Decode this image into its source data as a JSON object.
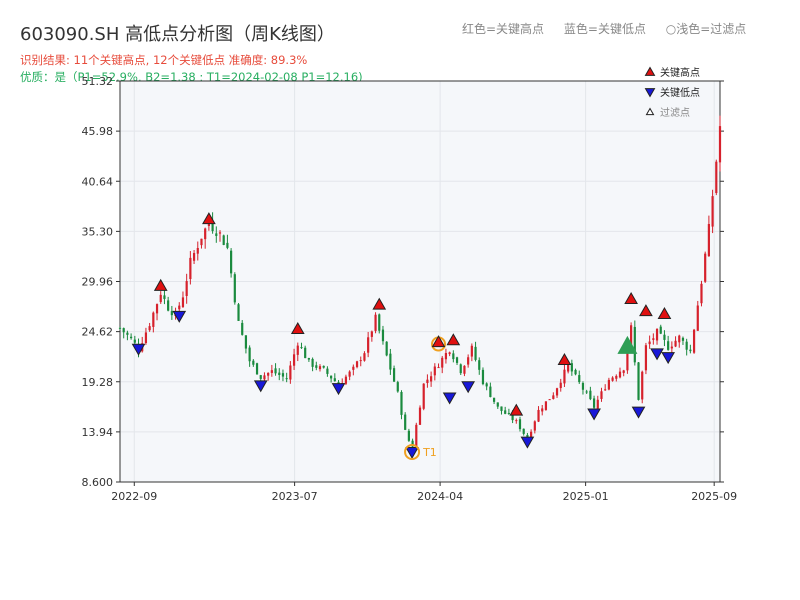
{
  "header": {
    "title": "603090.SH 高低点分析图（周K线图）",
    "legend_items": [
      "红色=关键高点",
      "蓝色=关键低点",
      "○浅色=过滤点"
    ],
    "stats_line": "识别结果: 11个关键高点, 12个关键低点  准确度: 89.3%",
    "quality_line": "优质：是（P1=52.9%, B2=1.38 ; T1=2024-02-08 P1=12.16)"
  },
  "colors": {
    "up": "#d6212c",
    "down": "#1a8a3e",
    "high_marker": "#e01010",
    "low_marker": "#1818d8",
    "filtered_marker": "#f0a020",
    "triangle_green": "#2e9e55",
    "plot_bg": "#f5f7fa"
  },
  "chart_data": {
    "type": "candlestick",
    "yticks": [
      "8.600",
      "13.94",
      "19.28",
      "24.62",
      "29.96",
      "35.30",
      "40.64",
      "45.98",
      "51.32"
    ],
    "ylim": [
      8.6,
      51.32
    ],
    "xticks": [
      "2022-09",
      "2023-07",
      "2024-04",
      "2025-01",
      "2025-09"
    ],
    "date_start": "2022-08-05",
    "date_end": "2025-09-12",
    "legend": [
      {
        "label": "关键高点",
        "marker": "triangle-up",
        "color": "#e01010"
      },
      {
        "label": "关键低点",
        "marker": "triangle-down",
        "color": "#1818d8"
      },
      {
        "label": "过滤点",
        "marker": "triangle-up-outline",
        "color": "#ffffff"
      }
    ],
    "close_path": [
      [
        "2022-08-05",
        25.0
      ],
      [
        "2022-08-26",
        23.8
      ],
      [
        "2022-09-09",
        22.8
      ],
      [
        "2022-09-30",
        25.5
      ],
      [
        "2022-10-21",
        28.8
      ],
      [
        "2022-11-04",
        27.2
      ],
      [
        "2022-11-18",
        26.4
      ],
      [
        "2022-12-02",
        28.5
      ],
      [
        "2022-12-16",
        32.0
      ],
      [
        "2023-01-06",
        34.8
      ],
      [
        "2023-01-20",
        36.2
      ],
      [
        "2023-02-10",
        35.0
      ],
      [
        "2023-02-24",
        33.5
      ],
      [
        "2023-03-17",
        25.5
      ],
      [
        "2023-04-07",
        21.5
      ],
      [
        "2023-04-28",
        19.8
      ],
      [
        "2023-05-19",
        20.4
      ],
      [
        "2023-06-16",
        19.6
      ],
      [
        "2023-07-07",
        23.5
      ],
      [
        "2023-07-28",
        21.3
      ],
      [
        "2023-08-25",
        20.5
      ],
      [
        "2023-09-22",
        19.0
      ],
      [
        "2023-10-20",
        20.6
      ],
      [
        "2023-11-10",
        22.5
      ],
      [
        "2023-12-01",
        26.0
      ],
      [
        "2023-12-22",
        22.0
      ],
      [
        "2024-01-12",
        18.0
      ],
      [
        "2024-01-26",
        14.0
      ],
      [
        "2024-02-08",
        12.16
      ],
      [
        "2024-03-01",
        19.0
      ],
      [
        "2024-03-29",
        21.2
      ],
      [
        "2024-04-19",
        22.8
      ],
      [
        "2024-05-10",
        20.5
      ],
      [
        "2024-05-31",
        22.8
      ],
      [
        "2024-06-21",
        19.3
      ],
      [
        "2024-07-19",
        16.5
      ],
      [
        "2024-08-23",
        15.0
      ],
      [
        "2024-09-13",
        13.2
      ],
      [
        "2024-10-04",
        16.2
      ],
      [
        "2024-11-01",
        18.0
      ],
      [
        "2024-11-29",
        21.0
      ],
      [
        "2024-12-27",
        18.5
      ],
      [
        "2025-01-17",
        16.6
      ],
      [
        "2025-02-14",
        19.5
      ],
      [
        "2025-03-14",
        20.8
      ],
      [
        "2025-03-28",
        25.0
      ],
      [
        "2025-04-11",
        17.5
      ],
      [
        "2025-04-25",
        23.0
      ],
      [
        "2025-05-16",
        24.5
      ],
      [
        "2025-06-06",
        23.0
      ],
      [
        "2025-06-27",
        24.0
      ],
      [
        "2025-07-18",
        22.5
      ],
      [
        "2025-08-08",
        30.0
      ],
      [
        "2025-08-22",
        35.5
      ],
      [
        "2025-09-12",
        46.5
      ]
    ],
    "key_highs": [
      {
        "date": "2022-10-21",
        "price": 29.5
      },
      {
        "date": "2023-01-20",
        "price": 36.6
      },
      {
        "date": "2023-07-07",
        "price": 24.9
      },
      {
        "date": "2023-12-08",
        "price": 27.5
      },
      {
        "date": "2024-03-29",
        "price": 23.5
      },
      {
        "date": "2024-04-26",
        "price": 23.7
      },
      {
        "date": "2024-08-23",
        "price": 16.2
      },
      {
        "date": "2024-11-22",
        "price": 21.6
      },
      {
        "date": "2025-03-28",
        "price": 28.1
      },
      {
        "date": "2025-04-25",
        "price": 26.8
      },
      {
        "date": "2025-05-30",
        "price": 26.5
      }
    ],
    "key_lows": [
      {
        "date": "2022-09-09",
        "price": 22.8
      },
      {
        "date": "2022-11-25",
        "price": 26.3
      },
      {
        "date": "2023-04-28",
        "price": 18.9
      },
      {
        "date": "2023-09-22",
        "price": 18.6
      },
      {
        "date": "2024-02-08",
        "price": 11.8
      },
      {
        "date": "2024-04-19",
        "price": 17.6
      },
      {
        "date": "2024-05-24",
        "price": 18.8
      },
      {
        "date": "2024-09-13",
        "price": 12.9
      },
      {
        "date": "2025-01-17",
        "price": 15.9
      },
      {
        "date": "2025-04-11",
        "price": 16.1
      },
      {
        "date": "2025-05-16",
        "price": 22.3
      },
      {
        "date": "2025-06-06",
        "price": 21.9
      }
    ],
    "filtered_points": [
      {
        "date": "2024-03-29",
        "price": 23.3
      }
    ],
    "t1_label": "T1",
    "t1": {
      "date": "2024-02-08",
      "price": 11.8
    },
    "big_triangle": {
      "date": "2025-03-21",
      "price": 23.0
    }
  }
}
